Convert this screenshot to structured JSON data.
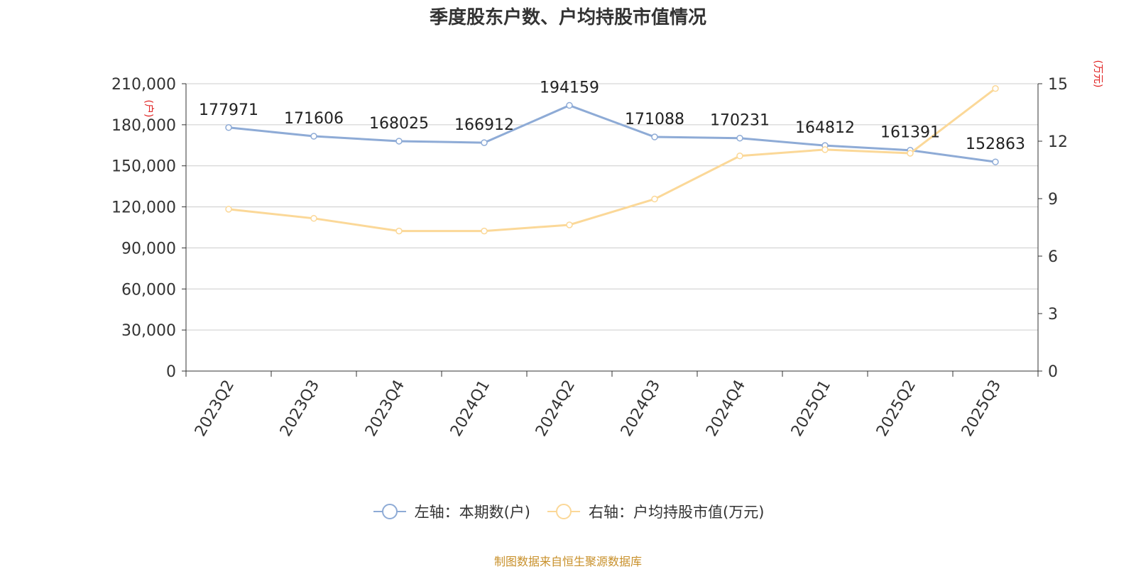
{
  "chart_data": {
    "type": "line",
    "title": "季度股东户数、户均持股市值情况",
    "categories": [
      "2023Q2",
      "2023Q3",
      "2023Q4",
      "2024Q1",
      "2024Q2",
      "2024Q3",
      "2024Q4",
      "2025Q1",
      "2025Q2",
      "2025Q3"
    ],
    "left_axis": {
      "unit": "(户)",
      "range": [
        0,
        210000
      ],
      "ticks": [
        "0",
        "30,000",
        "60,000",
        "90,000",
        "120,000",
        "150,000",
        "180,000",
        "210,000"
      ]
    },
    "right_axis": {
      "unit": "(万元)",
      "range": [
        0,
        15
      ],
      "ticks": [
        "0",
        "3",
        "6",
        "9",
        "12",
        "15"
      ]
    },
    "series": [
      {
        "name": "左轴：本期数(户)",
        "axis": "left",
        "color": "#8eabd6",
        "values": [
          177971,
          171606,
          168025,
          166912,
          194159,
          171088,
          170231,
          164812,
          161391,
          152863
        ],
        "labels": [
          "177971",
          "171606",
          "168025",
          "166912",
          "194159",
          "171088",
          "170231",
          "164812",
          "161391",
          "152863"
        ]
      },
      {
        "name": "右轴：户均持股市值(万元)",
        "axis": "right",
        "color": "#fbd898",
        "values": [
          8.45,
          7.97,
          7.31,
          7.31,
          7.63,
          8.98,
          11.23,
          11.56,
          11.37,
          14.75
        ]
      }
    ],
    "grid": true,
    "legend_position": "bottom-center",
    "source": "制图数据来自恒生聚源数据库"
  }
}
